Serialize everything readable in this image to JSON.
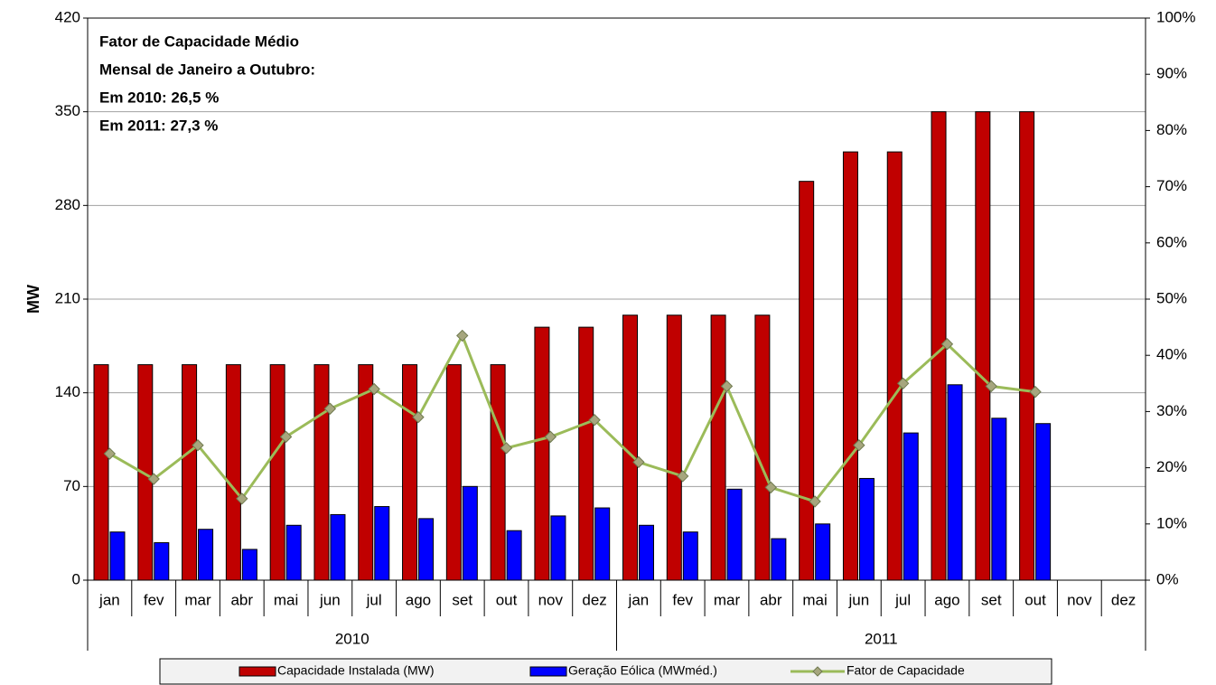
{
  "chart_data": {
    "type": "bar_line",
    "y_label": "MW",
    "annotations": [
      "Fator de Capacidade Médio",
      "Mensal de Janeiro a Outubro:",
      "Em 2010:  26,5 %",
      "Em 2011:  27,3 %"
    ],
    "categories": [
      "jan",
      "fev",
      "mar",
      "abr",
      "mai",
      "jun",
      "jul",
      "ago",
      "set",
      "out",
      "nov",
      "dez",
      "jan",
      "fev",
      "mar",
      "abr",
      "mai",
      "jun",
      "jul",
      "ago",
      "set",
      "out",
      "nov",
      "dez"
    ],
    "category_groups": [
      "2010",
      "2011"
    ],
    "ylim": [
      0,
      420
    ],
    "yticks": [
      0,
      70,
      140,
      210,
      280,
      350,
      420
    ],
    "y2lim": [
      0,
      100
    ],
    "y2ticks": [
      {
        "value": 0,
        "label": "0%"
      },
      {
        "value": 10,
        "label": "10%"
      },
      {
        "value": 20,
        "label": "20%"
      },
      {
        "value": 30,
        "label": "30%"
      },
      {
        "value": 40,
        "label": "40%"
      },
      {
        "value": 50,
        "label": "50%"
      },
      {
        "value": 60,
        "label": "60%"
      },
      {
        "value": 70,
        "label": "70%"
      },
      {
        "value": 80,
        "label": "80%"
      },
      {
        "value": 90,
        "label": "90%"
      },
      {
        "value": 100,
        "label": "100%"
      }
    ],
    "grid": true,
    "series": [
      {
        "name": "Capacidade Instalada (MW)",
        "type": "bar",
        "color": "#c00000",
        "values": [
          161,
          161,
          161,
          161,
          161,
          161,
          161,
          161,
          161,
          161,
          189,
          189,
          198,
          198,
          198,
          198,
          298,
          320,
          320,
          350,
          350,
          350,
          null,
          null
        ]
      },
      {
        "name": "Geração Eólica (MWméd.)",
        "type": "bar",
        "color": "#0000ff",
        "values": [
          36,
          28,
          38,
          23,
          41,
          49,
          55,
          46,
          70,
          37,
          48,
          54,
          41,
          36,
          68,
          31,
          42,
          76,
          110,
          146,
          121,
          117,
          null,
          null
        ]
      },
      {
        "name": "Fator de Capacidade",
        "type": "line",
        "axis": "y2",
        "color": "#9bbb59",
        "values": [
          22.5,
          18,
          24,
          14.5,
          25.5,
          30.5,
          34,
          29,
          43.5,
          23.5,
          25.5,
          28.5,
          21,
          18.5,
          34.5,
          16.5,
          14,
          24,
          35,
          42,
          34.5,
          33.5,
          null,
          null
        ]
      }
    ]
  }
}
